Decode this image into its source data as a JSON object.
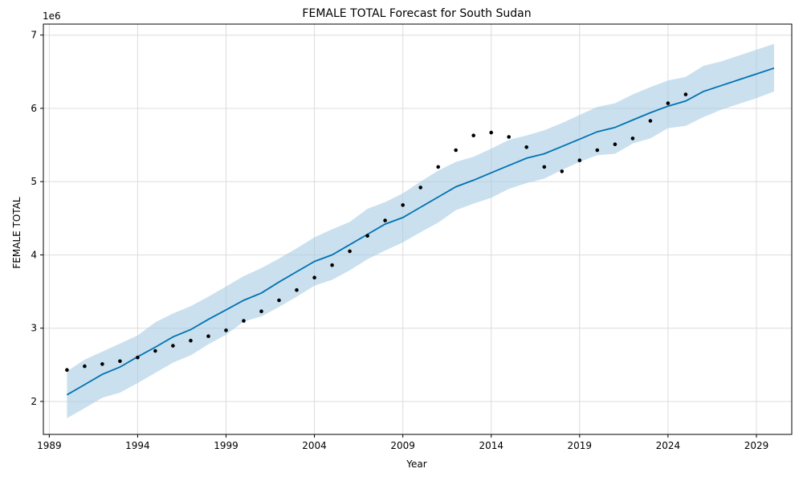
{
  "chart_data": {
    "type": "line",
    "title": "FEMALE TOTAL Forecast for South Sudan",
    "xlabel": "Year",
    "ylabel": "FEMALE TOTAL",
    "y_offset_label": "1e6",
    "xlim": [
      "1988-09-01",
      "2031-01-01"
    ],
    "ylim": [
      1.55,
      7.15
    ],
    "x_ticks": [
      "1989",
      "1994",
      "1999",
      "2004",
      "2009",
      "2014",
      "2019",
      "2024",
      "2029"
    ],
    "y_ticks": [
      "2",
      "3",
      "4",
      "5",
      "6",
      "7"
    ],
    "grid": true,
    "colors": {
      "forecast": "#0072b2",
      "interval": "#a6cbe3",
      "actual": "#000000"
    },
    "series": [
      {
        "role": "actual",
        "x": [
          "1990",
          "1991",
          "1992",
          "1993",
          "1994",
          "1995",
          "1996",
          "1997",
          "1998",
          "1999",
          "2000",
          "2001",
          "2002",
          "2003",
          "2004",
          "2005",
          "2006",
          "2007",
          "2008",
          "2009",
          "2010",
          "2011",
          "2012",
          "2013",
          "2014",
          "2015",
          "2016",
          "2017",
          "2018",
          "2019",
          "2020",
          "2021",
          "2022",
          "2023",
          "2024",
          "2025"
        ],
        "values": [
          2.43,
          2.48,
          2.51,
          2.55,
          2.6,
          2.69,
          2.76,
          2.83,
          2.89,
          2.97,
          3.1,
          3.23,
          3.38,
          3.52,
          3.69,
          3.86,
          4.05,
          4.26,
          4.47,
          4.68,
          4.92,
          5.2,
          5.43,
          5.63,
          5.67,
          5.61,
          5.47,
          5.2,
          5.14,
          5.29,
          5.43,
          5.51,
          5.59,
          5.83,
          6.07,
          6.19
        ]
      },
      {
        "role": "forecast",
        "x": [
          "1990",
          "1991",
          "1992",
          "1993",
          "1994",
          "1995",
          "1996",
          "1997",
          "1998",
          "1999",
          "2000",
          "2001",
          "2002",
          "2003",
          "2004",
          "2005",
          "2006",
          "2007",
          "2008",
          "2009",
          "2010",
          "2011",
          "2012",
          "2013",
          "2014",
          "2015",
          "2016",
          "2017",
          "2018",
          "2019",
          "2020",
          "2021",
          "2022",
          "2023",
          "2024",
          "2025",
          "2026",
          "2027",
          "2028",
          "2029",
          "2030"
        ],
        "values": [
          2.09,
          2.23,
          2.37,
          2.47,
          2.61,
          2.74,
          2.88,
          2.98,
          3.12,
          3.25,
          3.38,
          3.48,
          3.63,
          3.77,
          3.91,
          4.0,
          4.14,
          4.28,
          4.42,
          4.51,
          4.65,
          4.79,
          4.93,
          5.02,
          5.12,
          5.22,
          5.32,
          5.38,
          5.48,
          5.58,
          5.68,
          5.74,
          5.84,
          5.94,
          6.03,
          6.1,
          6.23,
          6.31,
          6.39,
          6.47,
          6.55
        ]
      },
      {
        "role": "interval_upper",
        "x": [
          "1990",
          "1991",
          "1992",
          "1993",
          "1994",
          "1995",
          "1996",
          "1997",
          "1998",
          "1999",
          "2000",
          "2001",
          "2002",
          "2003",
          "2004",
          "2005",
          "2006",
          "2007",
          "2008",
          "2009",
          "2010",
          "2011",
          "2012",
          "2013",
          "2014",
          "2015",
          "2016",
          "2017",
          "2018",
          "2019",
          "2020",
          "2021",
          "2022",
          "2023",
          "2024",
          "2025",
          "2026",
          "2027",
          "2028",
          "2029",
          "2030"
        ],
        "values": [
          2.41,
          2.57,
          2.68,
          2.79,
          2.9,
          3.08,
          3.2,
          3.3,
          3.43,
          3.57,
          3.71,
          3.82,
          3.95,
          4.09,
          4.24,
          4.35,
          4.45,
          4.63,
          4.72,
          4.84,
          5.0,
          5.15,
          5.27,
          5.34,
          5.45,
          5.57,
          5.63,
          5.7,
          5.8,
          5.91,
          6.02,
          6.07,
          6.19,
          6.29,
          6.38,
          6.43,
          6.58,
          6.64,
          6.72,
          6.8,
          6.88
        ]
      },
      {
        "role": "interval_lower",
        "x": [
          "1990",
          "1991",
          "1992",
          "1993",
          "1994",
          "1995",
          "1996",
          "1997",
          "1998",
          "1999",
          "2000",
          "2001",
          "2002",
          "2003",
          "2004",
          "2005",
          "2006",
          "2007",
          "2008",
          "2009",
          "2010",
          "2011",
          "2012",
          "2013",
          "2014",
          "2015",
          "2016",
          "2017",
          "2018",
          "2019",
          "2020",
          "2021",
          "2022",
          "2023",
          "2024",
          "2025",
          "2026",
          "2027",
          "2028",
          "2029",
          "2030"
        ],
        "values": [
          1.77,
          1.91,
          2.05,
          2.12,
          2.25,
          2.39,
          2.53,
          2.63,
          2.78,
          2.91,
          3.09,
          3.16,
          3.29,
          3.43,
          3.58,
          3.66,
          3.79,
          3.94,
          4.06,
          4.17,
          4.31,
          4.44,
          4.61,
          4.7,
          4.78,
          4.9,
          4.98,
          5.04,
          5.16,
          5.27,
          5.36,
          5.38,
          5.52,
          5.59,
          5.73,
          5.76,
          5.88,
          5.98,
          6.06,
          6.14,
          6.23
        ]
      }
    ]
  }
}
